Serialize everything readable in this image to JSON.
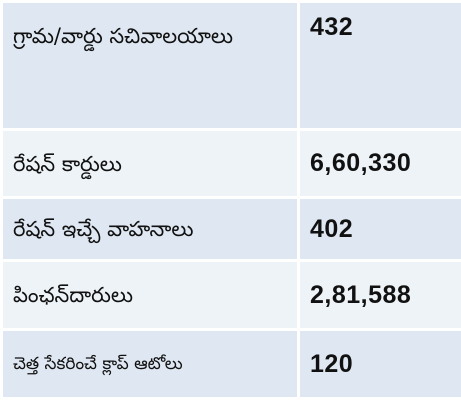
{
  "rows": [
    {
      "label": "గ్రామ/వార్డు సచివాలయాలు",
      "value": "432"
    },
    {
      "label": "రేషన్ కార్డులు",
      "value": "6,60,330"
    },
    {
      "label": "రేషన్ ఇచ్చే వాహనాలు",
      "value": "402"
    },
    {
      "label": "పింఛన్‌దారులు",
      "value": "2,81,588"
    },
    {
      "label": "చెత్త సేకరించే క్లాప్ ఆటోలు",
      "value": "120"
    }
  ],
  "colors": {
    "cell_dark": "#dfe8f2",
    "cell_light": "#eef3f8",
    "text": "#111111"
  }
}
